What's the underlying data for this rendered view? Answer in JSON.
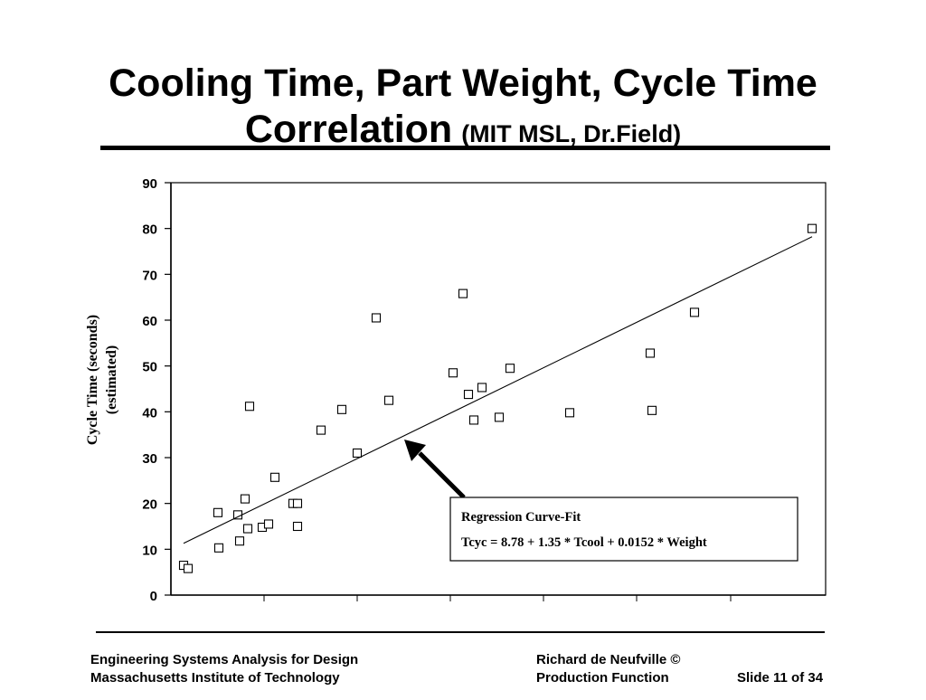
{
  "slide": {
    "title_line1": "Cooling Time, Part Weight, Cycle Time",
    "title_line2": "Correlation",
    "title_source": "(MIT MSL, Dr.Field)"
  },
  "footer": {
    "left_line1": "Engineering Systems Analysis for Design",
    "left_line2": "Massachusetts Institute of Technology",
    "right_line1": "Richard de Neufville  ©",
    "right_line2": "Production Function",
    "slide_number": "Slide 11 of 34"
  },
  "chart_data": {
    "type": "scatter",
    "title": "",
    "ylabel": "Cycle Time (seconds)",
    "ylabel_line2": "(estimated)",
    "xlabel": "",
    "ylim": [
      0,
      90
    ],
    "yticks": [
      0,
      10,
      20,
      30,
      40,
      50,
      60,
      70,
      80,
      90
    ],
    "grid": false,
    "marker": "open-square",
    "points_y": [
      6.5,
      5.8,
      18.0,
      10.3,
      21.0,
      14.5,
      41.2,
      17.5,
      11.8,
      14.8,
      15.5,
      25.7,
      20.0,
      20.0,
      15.0,
      36.0,
      40.5,
      31.0,
      60.5,
      42.5,
      48.5,
      65.8,
      43.8,
      38.2,
      45.3,
      38.8,
      49.5,
      39.8,
      52.8,
      40.3,
      61.7,
      80.0
    ],
    "trend_line": {
      "start_y": 11.3,
      "end_y": 78.2
    },
    "annotation": {
      "title": "Regression Curve-Fit",
      "equation": "Tcyc = 8.78 + 1.35 * Tcool + 0.0152 * Weight"
    }
  }
}
